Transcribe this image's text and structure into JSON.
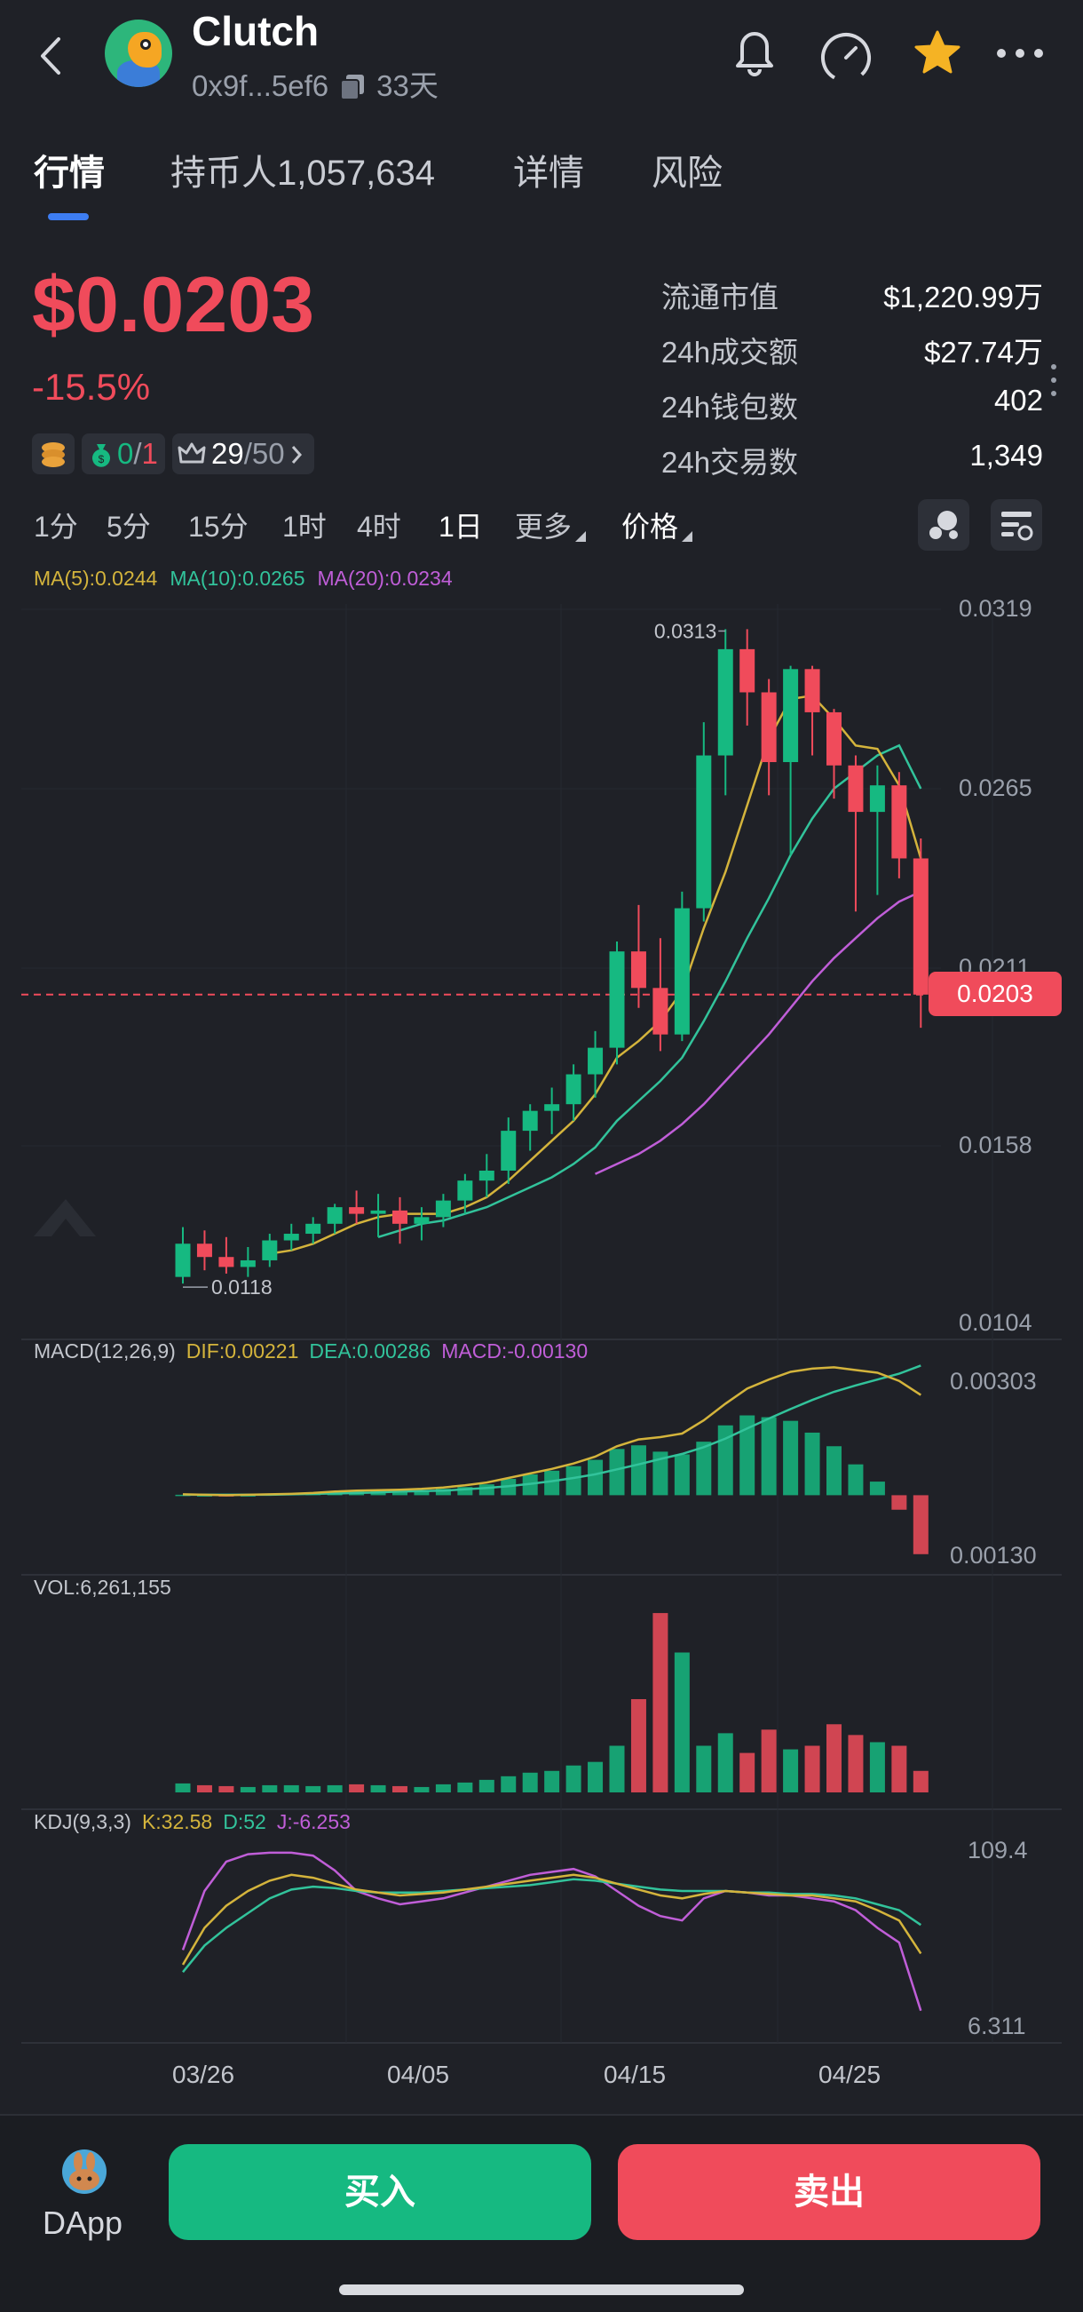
{
  "header": {
    "title": "Clutch",
    "address": "0x9f...5ef6",
    "age": "33天"
  },
  "tabs": [
    {
      "label": "行情",
      "active": true
    },
    {
      "label": "持币人1,057,634",
      "active": false
    },
    {
      "label": "详情",
      "active": false
    },
    {
      "label": "风险",
      "active": false
    }
  ],
  "price": {
    "value": "$0.0203",
    "change": "-15.5%",
    "color_down": "#f04b5b",
    "color_up": "#16b981"
  },
  "token_badges": {
    "holders_ratio_a": "0",
    "holders_ratio_b": "1",
    "rank_a": "29",
    "rank_b": "50"
  },
  "stats": [
    {
      "label": "流通市值",
      "value": "$1,220.99万"
    },
    {
      "label": "24h成交额",
      "value": "$27.74万"
    },
    {
      "label": "24h钱包数",
      "value": "402"
    },
    {
      "label": "24h交易数",
      "value": "1,349"
    }
  ],
  "intervals": [
    {
      "label": "1分",
      "active": false
    },
    {
      "label": "5分",
      "active": false
    },
    {
      "label": "15分",
      "active": false
    },
    {
      "label": "1时",
      "active": false
    },
    {
      "label": "4时",
      "active": false
    },
    {
      "label": "1日",
      "active": true
    },
    {
      "label": "更多",
      "active": false,
      "dropdown": true
    },
    {
      "label": "价格",
      "active": true,
      "dropdown": true
    }
  ],
  "ma_legend": {
    "ma5": "MA(5):0.0244",
    "ma10": "MA(10):0.0265",
    "ma20": "MA(20):0.0234"
  },
  "price_axis": [
    "0.0319",
    "0.0265",
    "0.0211",
    "0.0158",
    "0.0104"
  ],
  "current_price_tag": "0.0203",
  "high_label": "0.0313",
  "low_label": "0.0118",
  "macd_legend": {
    "name": "MACD(12,26,9)",
    "dif": "DIF:0.00221",
    "dea": "DEA:0.00286",
    "macd": "MACD:-0.00130"
  },
  "macd_axis": [
    "0.00303",
    "0.00130"
  ],
  "vol_legend": "VOL:6,261,155",
  "kdj_legend": {
    "name": "KDJ(9,3,3)",
    "k": "K:32.58",
    "d": "D:52",
    "j": "J:-6.253"
  },
  "kdj_axis": [
    "109.4",
    "6.311"
  ],
  "dates": [
    "03/26",
    "04/05",
    "04/15",
    "04/25"
  ],
  "footer": {
    "dapp_label": "DApp",
    "buy_label": "买入",
    "sell_label": "卖出"
  },
  "colors": {
    "ma5": "#d4b43c",
    "ma10": "#32c39b",
    "ma20": "#c05ed8",
    "up": "#16b981",
    "down": "#f04b5b"
  },
  "chart_data": {
    "type": "candlestick",
    "ylim": [
      0.0104,
      0.0319
    ],
    "candles": [
      {
        "o": 0.0118,
        "h": 0.0133,
        "l": 0.0116,
        "c": 0.0128
      },
      {
        "o": 0.0128,
        "h": 0.0132,
        "l": 0.012,
        "c": 0.0124
      },
      {
        "o": 0.0124,
        "h": 0.013,
        "l": 0.0119,
        "c": 0.0121
      },
      {
        "o": 0.0121,
        "h": 0.0127,
        "l": 0.0118,
        "c": 0.0123
      },
      {
        "o": 0.0123,
        "h": 0.0131,
        "l": 0.0121,
        "c": 0.0129
      },
      {
        "o": 0.0129,
        "h": 0.0134,
        "l": 0.0126,
        "c": 0.0131
      },
      {
        "o": 0.0131,
        "h": 0.0136,
        "l": 0.0128,
        "c": 0.0134
      },
      {
        "o": 0.0134,
        "h": 0.014,
        "l": 0.0131,
        "c": 0.0139
      },
      {
        "o": 0.0139,
        "h": 0.0144,
        "l": 0.0134,
        "c": 0.0137
      },
      {
        "o": 0.0137,
        "h": 0.0143,
        "l": 0.013,
        "c": 0.0138
      },
      {
        "o": 0.0138,
        "h": 0.0142,
        "l": 0.0128,
        "c": 0.0134
      },
      {
        "o": 0.0134,
        "h": 0.0139,
        "l": 0.0129,
        "c": 0.0136
      },
      {
        "o": 0.0136,
        "h": 0.0143,
        "l": 0.0133,
        "c": 0.0141
      },
      {
        "o": 0.0141,
        "h": 0.0149,
        "l": 0.0137,
        "c": 0.0147
      },
      {
        "o": 0.0147,
        "h": 0.0155,
        "l": 0.0142,
        "c": 0.015
      },
      {
        "o": 0.015,
        "h": 0.0166,
        "l": 0.0146,
        "c": 0.0162
      },
      {
        "o": 0.0162,
        "h": 0.017,
        "l": 0.0156,
        "c": 0.0168
      },
      {
        "o": 0.0168,
        "h": 0.0175,
        "l": 0.0161,
        "c": 0.017
      },
      {
        "o": 0.017,
        "h": 0.0182,
        "l": 0.0165,
        "c": 0.0179
      },
      {
        "o": 0.0179,
        "h": 0.0192,
        "l": 0.0172,
        "c": 0.0187
      },
      {
        "o": 0.0187,
        "h": 0.0219,
        "l": 0.0182,
        "c": 0.0216
      },
      {
        "o": 0.0216,
        "h": 0.023,
        "l": 0.0199,
        "c": 0.0205
      },
      {
        "o": 0.0205,
        "h": 0.022,
        "l": 0.0186,
        "c": 0.0191
      },
      {
        "o": 0.0191,
        "h": 0.0234,
        "l": 0.0189,
        "c": 0.0229
      },
      {
        "o": 0.0229,
        "h": 0.0285,
        "l": 0.0225,
        "c": 0.0275
      },
      {
        "o": 0.0275,
        "h": 0.0313,
        "l": 0.0263,
        "c": 0.0307
      },
      {
        "o": 0.0307,
        "h": 0.0313,
        "l": 0.0284,
        "c": 0.0294
      },
      {
        "o": 0.0294,
        "h": 0.0298,
        "l": 0.0263,
        "c": 0.0273
      },
      {
        "o": 0.0273,
        "h": 0.0302,
        "l": 0.0245,
        "c": 0.0301
      },
      {
        "o": 0.0301,
        "h": 0.0302,
        "l": 0.0275,
        "c": 0.0288
      },
      {
        "o": 0.0288,
        "h": 0.0289,
        "l": 0.0262,
        "c": 0.0272
      },
      {
        "o": 0.0272,
        "h": 0.0275,
        "l": 0.0228,
        "c": 0.0258
      },
      {
        "o": 0.0258,
        "h": 0.0272,
        "l": 0.0233,
        "c": 0.0266
      },
      {
        "o": 0.0266,
        "h": 0.027,
        "l": 0.0238,
        "c": 0.0244
      },
      {
        "o": 0.0244,
        "h": 0.025,
        "l": 0.0193,
        "c": 0.0203
      }
    ],
    "ma5": [
      null,
      null,
      null,
      null,
      0.0125,
      0.0126,
      0.0128,
      0.0131,
      0.0134,
      0.0136,
      0.0137,
      0.0137,
      0.0137,
      0.0139,
      0.0142,
      0.0147,
      0.0153,
      0.0159,
      0.0165,
      0.0173,
      0.0184,
      0.0189,
      0.0195,
      0.0204,
      0.0223,
      0.024,
      0.026,
      0.028,
      0.0292,
      0.0293,
      0.0286,
      0.0278,
      0.0277,
      0.0266,
      0.0244
    ],
    "ma10": [
      null,
      null,
      null,
      null,
      null,
      null,
      null,
      null,
      null,
      0.013,
      0.0132,
      0.0134,
      0.0135,
      0.0137,
      0.0139,
      0.0142,
      0.0145,
      0.0148,
      0.0152,
      0.0157,
      0.0165,
      0.0171,
      0.0177,
      0.0184,
      0.0195,
      0.0207,
      0.022,
      0.0232,
      0.0245,
      0.0256,
      0.0265,
      0.027,
      0.0275,
      0.0278,
      0.0265
    ],
    "ma20": [
      null,
      null,
      null,
      null,
      null,
      null,
      null,
      null,
      null,
      null,
      null,
      null,
      null,
      null,
      null,
      null,
      null,
      null,
      null,
      0.0149,
      0.0152,
      0.0155,
      0.0159,
      0.0164,
      0.017,
      0.0177,
      0.0184,
      0.0191,
      0.0199,
      0.0207,
      0.0214,
      0.022,
      0.0226,
      0.0231,
      0.0234
    ],
    "macd_dif": [
      2e-05,
      1e-05,
      0.0,
      1e-05,
      2e-05,
      3e-05,
      5e-05,
      8e-05,
      0.0001,
      0.00011,
      0.00012,
      0.00014,
      0.00017,
      0.00022,
      0.00028,
      0.00038,
      0.00048,
      0.00058,
      0.0007,
      0.00085,
      0.00108,
      0.00123,
      0.00128,
      0.00136,
      0.00165,
      0.00202,
      0.00235,
      0.00255,
      0.00272,
      0.00279,
      0.00282,
      0.00276,
      0.0027,
      0.00252,
      0.00221
    ],
    "macd_dea": [
      1e-05,
      1e-05,
      1e-05,
      1e-05,
      1e-05,
      2e-05,
      3e-05,
      4e-05,
      5e-05,
      6e-05,
      8e-05,
      9e-05,
      0.0001,
      0.00013,
      0.00016,
      0.0002,
      0.00025,
      0.00031,
      0.00038,
      0.00046,
      0.00057,
      0.00068,
      0.0008,
      0.00091,
      0.00106,
      0.00125,
      0.00147,
      0.00169,
      0.0019,
      0.0021,
      0.00228,
      0.00242,
      0.00255,
      0.00268,
      0.00286
    ],
    "macd_hist": [
      1e-05,
      0.0,
      -1e-05,
      0.0,
      2e-05,
      3e-05,
      4e-05,
      8e-05,
      0.0001,
      0.0001,
      8e-05,
      0.0001,
      0.00014,
      0.00018,
      0.00024,
      0.00036,
      0.00046,
      0.00054,
      0.00064,
      0.00078,
      0.00102,
      0.0011,
      0.00096,
      0.0009,
      0.00118,
      0.00154,
      0.00176,
      0.00172,
      0.00164,
      0.00138,
      0.00108,
      0.00068,
      0.0003,
      -0.00032,
      -0.0013
    ],
    "volume": [
      50,
      40,
      35,
      30,
      40,
      40,
      35,
      40,
      45,
      40,
      35,
      30,
      45,
      55,
      70,
      90,
      110,
      120,
      150,
      170,
      260,
      520,
      1000,
      780,
      260,
      330,
      220,
      350,
      240,
      260,
      380,
      320,
      280,
      260,
      120
    ],
    "kdj_k": [
      25,
      50,
      65,
      75,
      82,
      86,
      84,
      80,
      76,
      74,
      72,
      73,
      74,
      76,
      78,
      80,
      82,
      84,
      86,
      84,
      80,
      76,
      72,
      70,
      73,
      75,
      74,
      73,
      72,
      72,
      70,
      68,
      62,
      55,
      32.58
    ],
    "kdj_d": [
      20,
      38,
      50,
      60,
      70,
      76,
      78,
      77,
      75,
      74,
      74,
      74,
      75,
      76,
      77,
      78,
      79,
      81,
      83,
      82,
      80,
      78,
      76,
      75,
      75,
      75,
      74,
      74,
      73,
      73,
      72,
      70,
      66,
      62,
      52
    ],
    "kdj_j": [
      35,
      75,
      95,
      100,
      101,
      101,
      99,
      89,
      75,
      70,
      66,
      68,
      70,
      74,
      78,
      82,
      86,
      88,
      90,
      85,
      75,
      65,
      58,
      55,
      70,
      75,
      74,
      72,
      72,
      70,
      68,
      62,
      50,
      40,
      -6.253
    ]
  }
}
